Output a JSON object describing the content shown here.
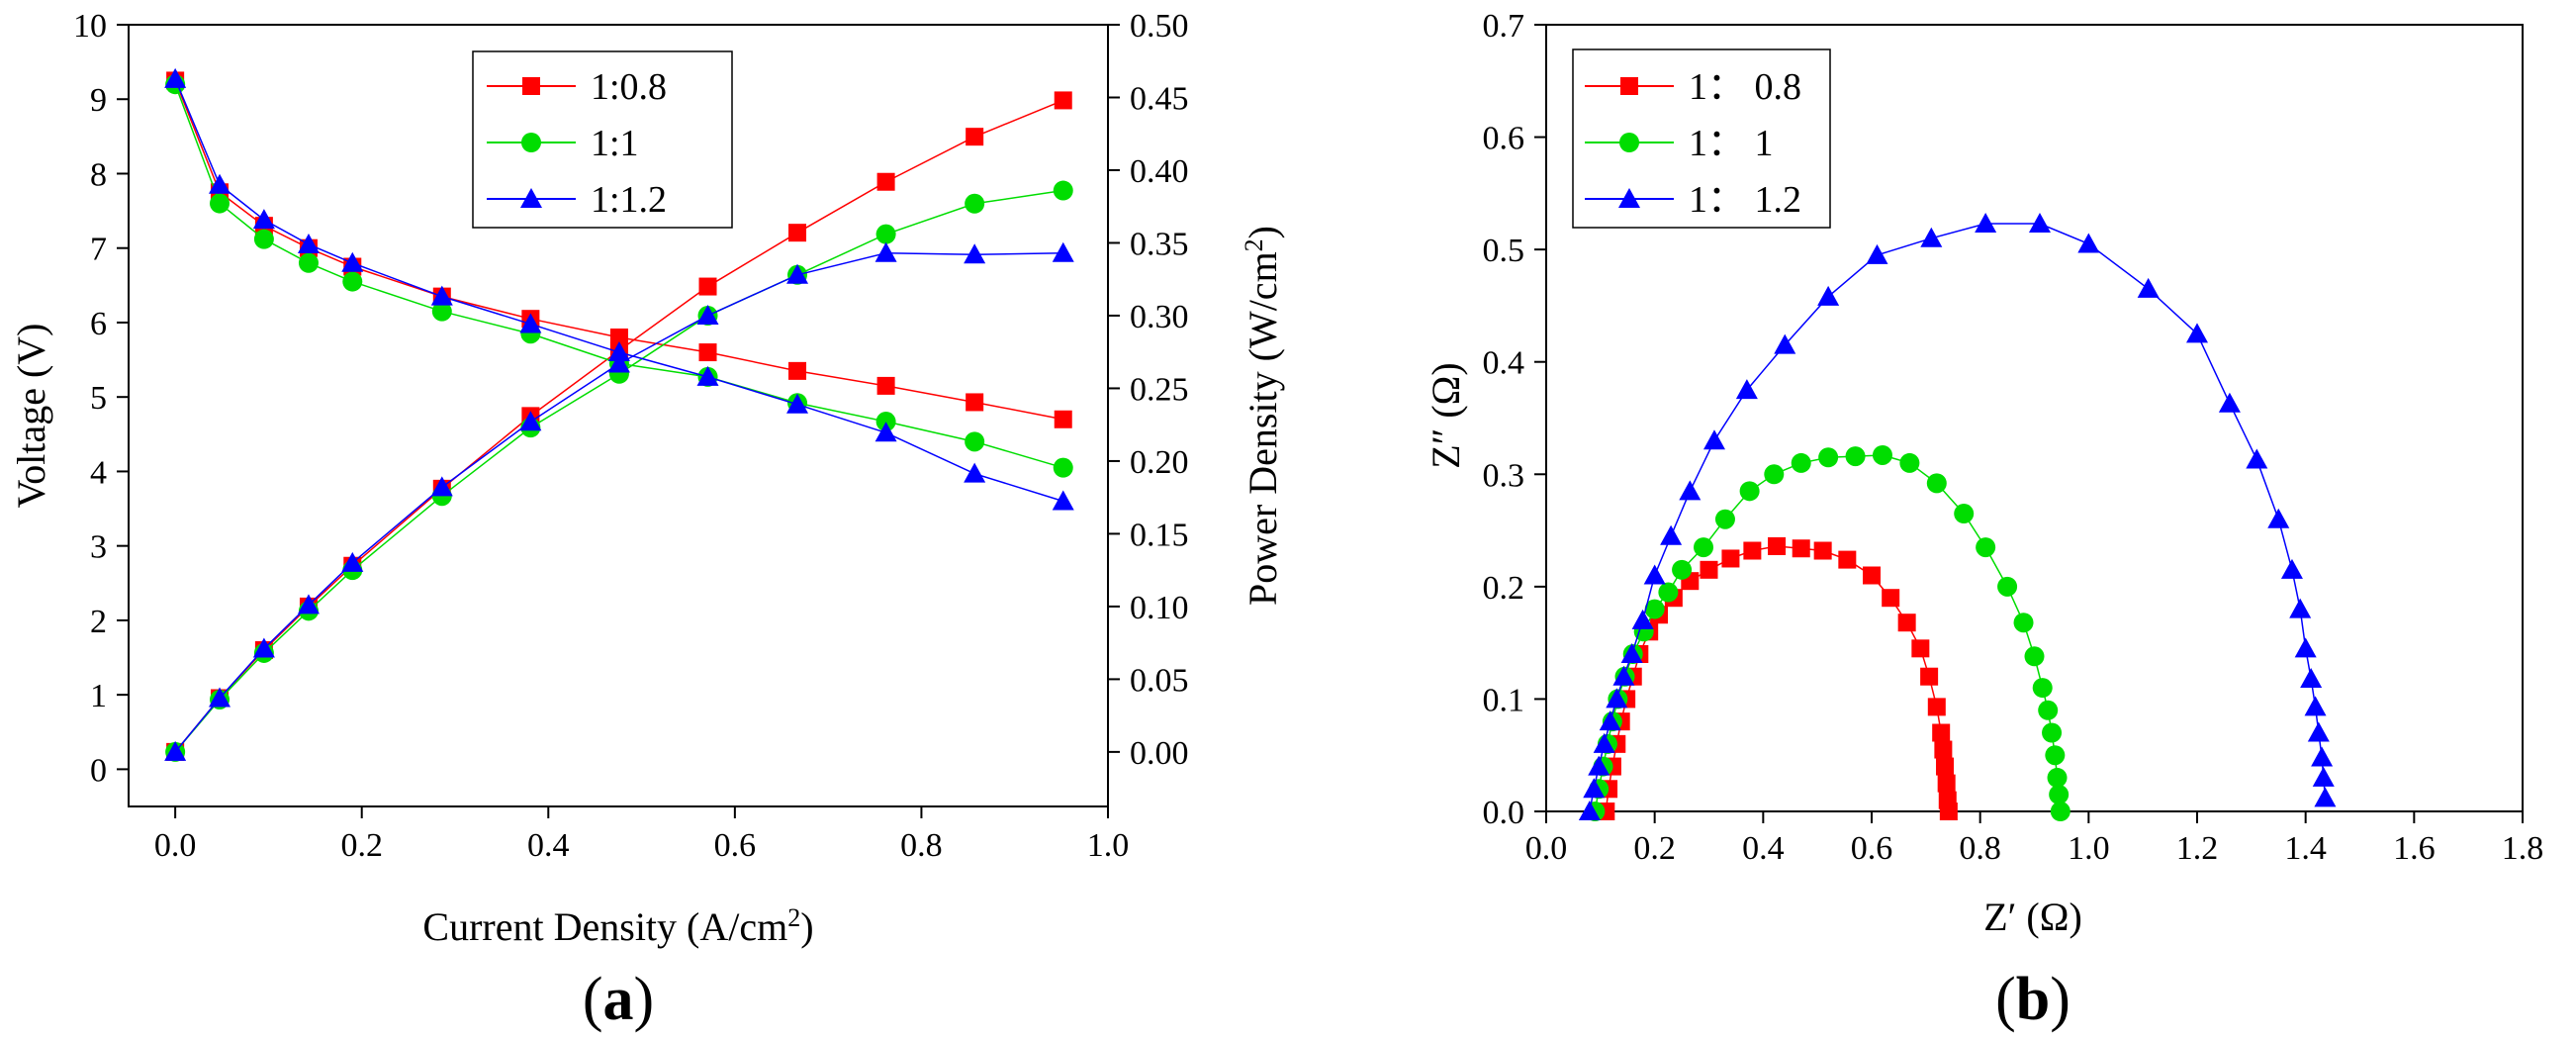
{
  "colors": {
    "red": "#ff0000",
    "green": "#00dd00",
    "blue": "#0000ff"
  },
  "chart_data": [
    {
      "type": "line",
      "panel_label": [
        "(",
        "a",
        ")"
      ],
      "xlabel": {
        "text": "Current Density (A/cm",
        "sup": "2",
        "tail": ")"
      },
      "ylabel": "Voltage (V)",
      "y2label": {
        "text": "Power Density (W/cm",
        "sup": "2",
        "tail": ")"
      },
      "xlim": [
        -0.05,
        1.0
      ],
      "ylim": [
        -0.5,
        10
      ],
      "y2lim": [
        -0.0375,
        0.5
      ],
      "x_ticks": [
        "0.0",
        "0.2",
        "0.4",
        "0.6",
        "0.8",
        "1.0"
      ],
      "y_ticks": [
        "0",
        "1",
        "2",
        "3",
        "4",
        "5",
        "6",
        "7",
        "8",
        "9",
        "10"
      ],
      "y2_ticks": [
        "0.00",
        "0.05",
        "0.10",
        "0.15",
        "0.20",
        "0.25",
        "0.30",
        "0.35",
        "0.40",
        "0.45",
        "0.50"
      ],
      "legend": "top-center",
      "grid": false,
      "x": [
        0,
        0.0476,
        0.0952,
        0.143,
        0.19,
        0.286,
        0.381,
        0.476,
        0.571,
        0.667,
        0.762,
        0.857,
        0.952
      ],
      "series": [
        {
          "name": "1:0.8",
          "color": "red",
          "marker": "square",
          "voltage": [
            9.25,
            7.75,
            7.3,
            7.0,
            6.75,
            6.35,
            6.05,
            5.8,
            5.6,
            5.35,
            5.15,
            4.93,
            4.7
          ],
          "power": [
            0.0,
            0.037,
            0.07,
            0.1,
            0.128,
            0.181,
            0.231,
            0.276,
            0.32,
            0.357,
            0.392,
            0.423,
            0.448
          ]
        },
        {
          "name": "1:1",
          "color": "green",
          "marker": "circle",
          "voltage": [
            9.2,
            7.6,
            7.12,
            6.8,
            6.55,
            6.15,
            5.85,
            5.45,
            5.27,
            4.92,
            4.67,
            4.4,
            4.05
          ],
          "power": [
            0.0,
            0.036,
            0.068,
            0.097,
            0.125,
            0.176,
            0.223,
            0.26,
            0.3,
            0.328,
            0.356,
            0.377,
            0.386
          ]
        },
        {
          "name": "1:1.2",
          "color": "blue",
          "marker": "triangle",
          "voltage": [
            9.27,
            7.85,
            7.38,
            7.05,
            6.8,
            6.35,
            5.98,
            5.6,
            5.27,
            4.9,
            4.52,
            3.97,
            3.6
          ],
          "power": [
            0.0,
            0.037,
            0.071,
            0.101,
            0.13,
            0.182,
            0.227,
            0.267,
            0.3,
            0.328,
            0.343,
            0.342,
            0.343
          ]
        }
      ]
    },
    {
      "type": "scatter",
      "panel_label": [
        "(",
        "b",
        ")"
      ],
      "xlabel": {
        "text": "Z′ (Ω)"
      },
      "ylabel": "Z″ (Ω)",
      "xlim": [
        0.0,
        1.8
      ],
      "ylim": [
        0.0,
        0.7
      ],
      "x_ticks": [
        "0.0",
        "0.2",
        "0.4",
        "0.6",
        "0.8",
        "1.0",
        "1.2",
        "1.4",
        "1.6",
        "1.8"
      ],
      "y_ticks": [
        "0.0",
        "0.1",
        "0.2",
        "0.3",
        "0.4",
        "0.5",
        "0.6",
        "0.7"
      ],
      "legend": "top-left",
      "grid": false,
      "series": [
        {
          "name": "1： 0.8",
          "color": "red",
          "marker": "square",
          "points": [
            [
              0.11,
              0.0
            ],
            [
              0.115,
              0.02
            ],
            [
              0.122,
              0.04
            ],
            [
              0.13,
              0.06
            ],
            [
              0.138,
              0.08
            ],
            [
              0.148,
              0.1
            ],
            [
              0.16,
              0.12
            ],
            [
              0.172,
              0.14
            ],
            [
              0.19,
              0.16
            ],
            [
              0.208,
              0.175
            ],
            [
              0.235,
              0.19
            ],
            [
              0.265,
              0.205
            ],
            [
              0.3,
              0.215
            ],
            [
              0.34,
              0.225
            ],
            [
              0.38,
              0.232
            ],
            [
              0.425,
              0.236
            ],
            [
              0.47,
              0.234
            ],
            [
              0.51,
              0.232
            ],
            [
              0.555,
              0.224
            ],
            [
              0.6,
              0.21
            ],
            [
              0.635,
              0.19
            ],
            [
              0.665,
              0.168
            ],
            [
              0.69,
              0.145
            ],
            [
              0.706,
              0.12
            ],
            [
              0.72,
              0.093
            ],
            [
              0.728,
              0.07
            ],
            [
              0.732,
              0.055
            ],
            [
              0.735,
              0.04
            ],
            [
              0.738,
              0.025
            ],
            [
              0.74,
              0.01
            ],
            [
              0.742,
              0.0
            ]
          ]
        },
        {
          "name": "1： 1",
          "color": "green",
          "marker": "circle",
          "points": [
            [
              0.09,
              0.0
            ],
            [
              0.097,
              0.02
            ],
            [
              0.105,
              0.04
            ],
            [
              0.113,
              0.06
            ],
            [
              0.122,
              0.08
            ],
            [
              0.132,
              0.1
            ],
            [
              0.145,
              0.12
            ],
            [
              0.16,
              0.14
            ],
            [
              0.18,
              0.16
            ],
            [
              0.2,
              0.18
            ],
            [
              0.225,
              0.195
            ],
            [
              0.25,
              0.215
            ],
            [
              0.29,
              0.235
            ],
            [
              0.33,
              0.26
            ],
            [
              0.375,
              0.285
            ],
            [
              0.42,
              0.3
            ],
            [
              0.47,
              0.31
            ],
            [
              0.52,
              0.315
            ],
            [
              0.57,
              0.316
            ],
            [
              0.62,
              0.317
            ],
            [
              0.67,
              0.31
            ],
            [
              0.72,
              0.292
            ],
            [
              0.77,
              0.265
            ],
            [
              0.81,
              0.235
            ],
            [
              0.85,
              0.2
            ],
            [
              0.88,
              0.168
            ],
            [
              0.9,
              0.138
            ],
            [
              0.915,
              0.11
            ],
            [
              0.925,
              0.09
            ],
            [
              0.932,
              0.07
            ],
            [
              0.938,
              0.05
            ],
            [
              0.942,
              0.03
            ],
            [
              0.945,
              0.015
            ],
            [
              0.948,
              0.0
            ]
          ]
        },
        {
          "name": "1： 1.2",
          "color": "blue",
          "marker": "triangle",
          "points": [
            [
              0.08,
              0.0
            ],
            [
              0.088,
              0.02
            ],
            [
              0.097,
              0.04
            ],
            [
              0.107,
              0.06
            ],
            [
              0.118,
              0.08
            ],
            [
              0.13,
              0.1
            ],
            [
              0.143,
              0.12
            ],
            [
              0.158,
              0.14
            ],
            [
              0.178,
              0.17
            ],
            [
              0.2,
              0.21
            ],
            [
              0.23,
              0.245
            ],
            [
              0.265,
              0.285
            ],
            [
              0.31,
              0.33
            ],
            [
              0.37,
              0.375
            ],
            [
              0.44,
              0.415
            ],
            [
              0.52,
              0.458
            ],
            [
              0.61,
              0.495
            ],
            [
              0.71,
              0.51
            ],
            [
              0.81,
              0.523
            ],
            [
              0.91,
              0.523
            ],
            [
              1.0,
              0.505
            ],
            [
              1.11,
              0.465
            ],
            [
              1.2,
              0.425
            ],
            [
              1.26,
              0.363
            ],
            [
              1.31,
              0.313
            ],
            [
              1.35,
              0.26
            ],
            [
              1.375,
              0.215
            ],
            [
              1.39,
              0.18
            ],
            [
              1.4,
              0.145
            ],
            [
              1.41,
              0.118
            ],
            [
              1.418,
              0.093
            ],
            [
              1.424,
              0.07
            ],
            [
              1.43,
              0.048
            ],
            [
              1.433,
              0.03
            ],
            [
              1.436,
              0.012
            ]
          ]
        }
      ]
    }
  ]
}
